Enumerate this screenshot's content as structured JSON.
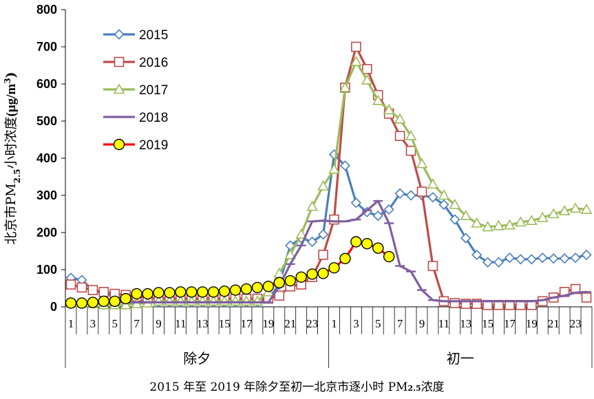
{
  "chart_data": {
    "type": "line",
    "title": "",
    "xlabel": "",
    "ylabel": {
      "main": "北京市PM",
      "sub": "2.5",
      "mid": "小时浓度",
      "unit": "(μg/m",
      "sup": "3",
      "close": ")"
    },
    "ylim": [
      0,
      800
    ],
    "yticks": [
      0,
      100,
      200,
      300,
      400,
      500,
      600,
      700,
      800
    ],
    "x_hours": [
      "1",
      "2",
      "3",
      "4",
      "5",
      "6",
      "7",
      "8",
      "9",
      "10",
      "11",
      "12",
      "13",
      "14",
      "15",
      "16",
      "17",
      "18",
      "19",
      "20",
      "21",
      "22",
      "23",
      "24",
      "1",
      "2",
      "3",
      "4",
      "5",
      "6",
      "7",
      "8",
      "9",
      "10",
      "11",
      "12",
      "13",
      "14",
      "15",
      "16",
      "17",
      "18",
      "19",
      "20",
      "21",
      "22",
      "23",
      "24"
    ],
    "x_tick_labels": [
      "1",
      "3",
      "5",
      "7",
      "9",
      "11",
      "13",
      "15",
      "17",
      "19",
      "21",
      "23",
      "1",
      "3",
      "5",
      "7",
      "9",
      "11",
      "13",
      "15",
      "17",
      "19",
      "21",
      "23"
    ],
    "groups": [
      {
        "label": "除夕",
        "start": 0,
        "end": 23
      },
      {
        "label": "初一",
        "start": 24,
        "end": 47
      }
    ],
    "grid": false,
    "legend_position": "top-left",
    "series": [
      {
        "name": "2015",
        "color": "#4A7EBB",
        "marker": "diamond",
        "values": [
          78,
          72,
          45,
          35,
          28,
          22,
          18,
          15,
          12,
          12,
          12,
          12,
          12,
          12,
          12,
          12,
          12,
          12,
          22,
          60,
          165,
          185,
          175,
          195,
          410,
          380,
          280,
          255,
          245,
          262,
          305,
          300,
          300,
          295,
          275,
          235,
          185,
          140,
          120,
          120,
          132,
          128,
          128,
          132,
          130,
          130,
          132,
          140
        ]
      },
      {
        "name": "2016",
        "color": "#BE4B48",
        "marker": "square",
        "values": [
          60,
          52,
          45,
          40,
          35,
          32,
          28,
          25,
          22,
          22,
          22,
          22,
          22,
          22,
          22,
          22,
          22,
          22,
          22,
          30,
          55,
          60,
          80,
          140,
          235,
          590,
          700,
          640,
          570,
          520,
          460,
          420,
          310,
          110,
          15,
          10,
          8,
          8,
          5,
          5,
          5,
          5,
          5,
          15,
          25,
          40,
          48,
          25
        ]
      },
      {
        "name": "2017",
        "color": "#9BBB59",
        "marker": "triangle",
        "values": [
          10,
          10,
          8,
          5,
          5,
          5,
          8,
          10,
          15,
          15,
          15,
          15,
          15,
          15,
          15,
          15,
          15,
          15,
          40,
          90,
          140,
          195,
          270,
          325,
          370,
          590,
          660,
          610,
          555,
          530,
          505,
          460,
          385,
          330,
          300,
          275,
          245,
          225,
          215,
          218,
          220,
          228,
          232,
          240,
          250,
          258,
          265,
          262
        ]
      },
      {
        "name": "2018",
        "color": "#7E5F9F",
        "marker": "dash",
        "values": [
          12,
          12,
          12,
          12,
          12,
          12,
          12,
          12,
          12,
          12,
          12,
          12,
          12,
          12,
          12,
          12,
          12,
          12,
          12,
          55,
          115,
          165,
          230,
          232,
          230,
          230,
          235,
          260,
          285,
          225,
          110,
          95,
          45,
          18,
          15,
          15,
          15,
          15,
          15,
          15,
          15,
          15,
          15,
          18,
          25,
          30,
          38,
          40
        ]
      },
      {
        "name": "2019",
        "color": "#FF0000",
        "marker": "circle",
        "marker_fill": "#FFFF00",
        "values": [
          10,
          10,
          12,
          15,
          15,
          22,
          35,
          35,
          38,
          38,
          40,
          40,
          40,
          40,
          42,
          45,
          48,
          52,
          55,
          65,
          70,
          80,
          88,
          90,
          105,
          130,
          175,
          170,
          158,
          135
        ]
      }
    ]
  },
  "caption": {
    "pre": "2015 年至 2019 年除夕至初一北京市逐小时 PM",
    "sub": "2.5",
    "post": "浓度"
  }
}
